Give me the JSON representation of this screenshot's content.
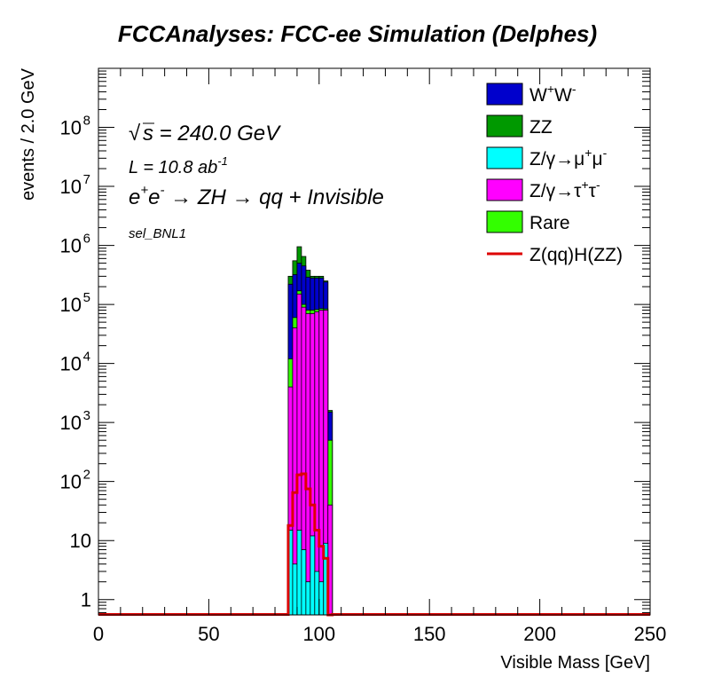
{
  "chart_data": {
    "type": "bar",
    "title": "FCCAnalyses: FCC-ee Simulation (Delphes)",
    "xlabel": "Visible Mass [GeV]",
    "ylabel": "events / 2.0 GeV",
    "xlim": [
      0,
      250
    ],
    "ylim": [
      0.55,
      1000000000
    ],
    "y_scale": "log",
    "stacked": true,
    "bin_width": 2.0,
    "x_ticks": [
      "0",
      "50",
      "100",
      "150",
      "200",
      "250"
    ],
    "y_ticks": [
      {
        "value": 1,
        "label": "1"
      },
      {
        "value": 10,
        "label": "10"
      },
      {
        "value": 100,
        "label": "10",
        "exp": "2"
      },
      {
        "value": 1000,
        "label": "10",
        "exp": "3"
      },
      {
        "value": 10000,
        "label": "10",
        "exp": "4"
      },
      {
        "value": 100000,
        "label": "10",
        "exp": "5"
      },
      {
        "value": 1000000,
        "label": "10",
        "exp": "6"
      },
      {
        "value": 10000000,
        "label": "10",
        "exp": "7"
      },
      {
        "value": 100000000,
        "label": "10",
        "exp": "8"
      }
    ],
    "annotations": {
      "sqrt_s": "s = 240.0 GeV",
      "lumi": "L = 10.8 ab",
      "lumi_exp": "-1",
      "process": "e",
      "process_exp1": "+",
      "process_mid": "e",
      "process_exp2": "-",
      "process_rest": " → ZH → qq + Invisible",
      "selection": "sel_BNL1"
    },
    "bins_x_start": [
      86,
      88,
      90,
      92,
      94,
      96,
      98,
      100,
      102,
      104
    ],
    "stack_tops": {
      "mumu": [
        15,
        4,
        15,
        7,
        2,
        12,
        3,
        2,
        9,
        0.55
      ],
      "tautau": [
        4000,
        40000,
        150000,
        90000,
        70000,
        70000,
        75000,
        80000,
        80000,
        40
      ],
      "rare": [
        12000,
        60000,
        170000,
        100000,
        80000,
        80000,
        82000,
        85000,
        84000,
        500
      ],
      "ww": [
        220000,
        320000,
        500000,
        450000,
        290000,
        280000,
        280000,
        280000,
        240000,
        1500
      ],
      "zz": [
        300000,
        550000,
        950000,
        650000,
        380000,
        300000,
        300000,
        300000,
        250000,
        1600
      ]
    },
    "signal": {
      "name": "Z(qq)H(ZZ)",
      "values": [
        18,
        65,
        130,
        135,
        75,
        40,
        15,
        8,
        5,
        0.55
      ]
    },
    "series": [
      {
        "name": "W+W-",
        "label": "W",
        "sup1": "+",
        "label2": "W",
        "sup2": "-",
        "color": "#0000cc"
      },
      {
        "name": "ZZ",
        "label": "ZZ",
        "sup1": "",
        "label2": "",
        "sup2": "",
        "color": "#009900"
      },
      {
        "name": "Z/γ→μ+μ-",
        "label": "Z/γ→μ",
        "sup1": "+",
        "label2": "μ",
        "sup2": "-",
        "color": "#00ffff"
      },
      {
        "name": "Z/γ→τ+τ-",
        "label": "Z/γ→τ",
        "sup1": "+",
        "label2": "τ",
        "sup2": "-",
        "color": "#ff00ff"
      },
      {
        "name": "Rare",
        "label": "Rare",
        "sup1": "",
        "label2": "",
        "sup2": "",
        "color": "#33ff00"
      },
      {
        "name": "Z(qq)H(ZZ)",
        "label": "Z(qq)H(ZZ)",
        "sup1": "",
        "label2": "",
        "sup2": "",
        "color": "#dd0000",
        "line": true
      }
    ]
  }
}
